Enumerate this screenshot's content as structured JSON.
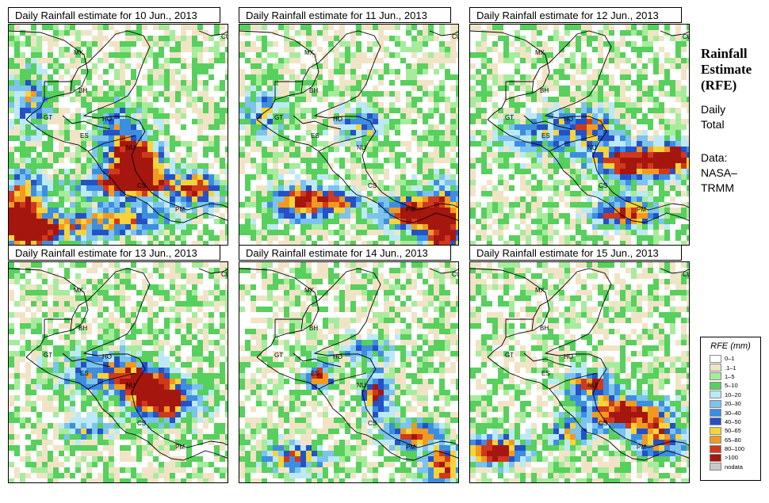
{
  "panels": [
    {
      "title": "Daily Rainfall estimate for  10 Jun., 2013",
      "seed": 11,
      "blobs": [
        [
          0.06,
          0.85,
          0.1,
          0.16,
          0.95
        ],
        [
          0.58,
          0.62,
          0.1,
          0.1,
          1.0
        ],
        [
          0.55,
          0.72,
          0.25,
          0.06,
          0.7
        ],
        [
          0.85,
          0.75,
          0.1,
          0.07,
          0.7
        ],
        [
          0.5,
          0.88,
          0.22,
          0.07,
          0.6
        ],
        [
          0.15,
          0.93,
          0.18,
          0.06,
          0.7
        ],
        [
          0.5,
          0.5,
          0.1,
          0.15,
          0.5
        ],
        [
          0.1,
          0.35,
          0.08,
          0.14,
          0.5
        ]
      ]
    },
    {
      "title": "Daily Rainfall estimate for  11 Jun., 2013",
      "seed": 23,
      "blobs": [
        [
          0.92,
          0.9,
          0.1,
          0.16,
          1.0
        ],
        [
          0.28,
          0.8,
          0.14,
          0.08,
          0.8
        ],
        [
          0.75,
          0.85,
          0.12,
          0.07,
          0.8
        ],
        [
          0.45,
          0.8,
          0.08,
          0.05,
          0.6
        ],
        [
          0.55,
          0.45,
          0.1,
          0.08,
          0.5
        ],
        [
          0.1,
          0.4,
          0.1,
          0.1,
          0.45
        ]
      ]
    },
    {
      "title": "Daily Rainfall estimate for  12 Jun., 2013",
      "seed": 37,
      "blobs": [
        [
          0.72,
          0.62,
          0.16,
          0.08,
          0.95
        ],
        [
          0.92,
          0.6,
          0.1,
          0.06,
          0.9
        ],
        [
          0.7,
          0.85,
          0.14,
          0.06,
          0.8
        ],
        [
          0.55,
          0.45,
          0.12,
          0.08,
          0.45
        ],
        [
          0.35,
          0.5,
          0.2,
          0.1,
          0.4
        ]
      ]
    },
    {
      "title": "Daily Rainfall estimate for  13 Jun., 2013",
      "seed": 41,
      "blobs": [
        [
          0.7,
          0.62,
          0.14,
          0.09,
          1.0
        ],
        [
          0.6,
          0.55,
          0.08,
          0.06,
          0.8
        ],
        [
          0.45,
          0.5,
          0.2,
          0.1,
          0.55
        ],
        [
          0.35,
          0.75,
          0.1,
          0.06,
          0.4
        ]
      ]
    },
    {
      "title": "Daily Rainfall estimate for  14 Jun., 2013",
      "seed": 53,
      "blobs": [
        [
          0.36,
          0.52,
          0.06,
          0.05,
          0.8
        ],
        [
          0.62,
          0.6,
          0.06,
          0.1,
          0.75
        ],
        [
          0.78,
          0.78,
          0.1,
          0.06,
          0.75
        ],
        [
          0.92,
          0.92,
          0.08,
          0.1,
          0.8
        ],
        [
          0.25,
          0.88,
          0.14,
          0.06,
          0.6
        ],
        [
          0.55,
          0.4,
          0.15,
          0.06,
          0.4
        ]
      ]
    },
    {
      "title": "Daily Rainfall estimate for  15 Jun., 2013",
      "seed": 67,
      "blobs": [
        [
          0.12,
          0.85,
          0.12,
          0.06,
          1.0
        ],
        [
          0.7,
          0.68,
          0.18,
          0.07,
          0.95
        ],
        [
          0.55,
          0.55,
          0.12,
          0.06,
          0.7
        ],
        [
          0.85,
          0.8,
          0.12,
          0.08,
          0.65
        ],
        [
          0.45,
          0.78,
          0.1,
          0.06,
          0.5
        ]
      ]
    }
  ],
  "map_labels": {
    "MX": "MX",
    "BH": "BH",
    "GT": "GT",
    "HO": "HO",
    "ES": "ES",
    "NU": "NU",
    "CS": "CS",
    "PM": "PM",
    "CU": "CU"
  },
  "sidebar": {
    "title_line1": "Rainfall",
    "title_line2": "Estimate",
    "title_line3": "(RFE)",
    "daily_line1": "Daily",
    "daily_line2": "Total",
    "data_line1": "Data:",
    "data_line2": "NASA–",
    "data_line3": "TRMM"
  },
  "legend": {
    "title": "RFE (mm)",
    "items": [
      {
        "label": "0–1",
        "color": "#ffffff"
      },
      {
        "label": ".1–1",
        "color": "#f1e4c6"
      },
      {
        "label": "1–5",
        "color": "#a6ec9c"
      },
      {
        "label": "5–10",
        "color": "#57d05d"
      },
      {
        "label": "10–20",
        "color": "#bde9f6"
      },
      {
        "label": "20–30",
        "color": "#7cc3ee"
      },
      {
        "label": "30–40",
        "color": "#3d8ee1"
      },
      {
        "label": "40–50",
        "color": "#2451c8"
      },
      {
        "label": "50–65",
        "color": "#f5d43b"
      },
      {
        "label": "65–80",
        "color": "#f29a1f"
      },
      {
        "label": "80–100",
        "color": "#d0391b"
      },
      {
        "label": ">100",
        "color": "#a5160f"
      },
      {
        "label": "nodata",
        "color": "#c9c9c9"
      }
    ]
  }
}
